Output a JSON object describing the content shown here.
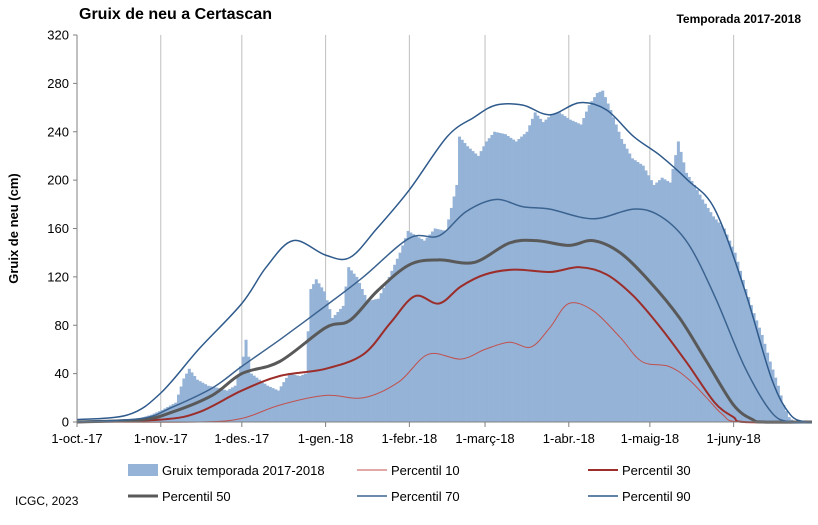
{
  "chart_data": {
    "type": "area",
    "title": "Gruix de neu a Certascan",
    "subtitle": "Temporada 2017-2018",
    "xlabel": "",
    "ylabel": "Gruix de neu (cm)",
    "ylim": [
      0,
      320
    ],
    "yticks": [
      0,
      40,
      80,
      120,
      160,
      200,
      240,
      280,
      320
    ],
    "x_range": [
      "2017-10-01",
      "2018-06-30"
    ],
    "xticks": [
      {
        "date": "2017-10-01",
        "label": "1-oct.-17"
      },
      {
        "date": "2017-11-01",
        "label": "1-nov.-17"
      },
      {
        "date": "2017-12-01",
        "label": "1-des.-17"
      },
      {
        "date": "2018-01-01",
        "label": "1-gen.-18"
      },
      {
        "date": "2018-02-01",
        "label": "1-febr.-18"
      },
      {
        "date": "2018-03-01",
        "label": "1-març-18"
      },
      {
        "date": "2018-04-01",
        "label": "1-abr.-18"
      },
      {
        "date": "2018-05-01",
        "label": "1-maig-18"
      },
      {
        "date": "2018-06-01",
        "label": "1-juny-18"
      }
    ],
    "grid": "vertical",
    "legend_position": "bottom",
    "series": [
      {
        "name": "Gruix temporada 2017-2018",
        "kind": "bar",
        "color": "#95b3d7",
        "points": [
          [
            "2017-10-01",
            0
          ],
          [
            "2017-10-20",
            0
          ],
          [
            "2017-10-25",
            4
          ],
          [
            "2017-10-28",
            6
          ],
          [
            "2017-11-01",
            10
          ],
          [
            "2017-11-06",
            16
          ],
          [
            "2017-11-09",
            36
          ],
          [
            "2017-11-11",
            44
          ],
          [
            "2017-11-14",
            35
          ],
          [
            "2017-11-18",
            30
          ],
          [
            "2017-11-22",
            28
          ],
          [
            "2017-11-25",
            26
          ],
          [
            "2017-11-28",
            30
          ],
          [
            "2017-12-01",
            54
          ],
          [
            "2017-12-02",
            68
          ],
          [
            "2017-12-04",
            40
          ],
          [
            "2017-12-10",
            30
          ],
          [
            "2017-12-14",
            26
          ],
          [
            "2017-12-18",
            40
          ],
          [
            "2017-12-22",
            38
          ],
          [
            "2017-12-24",
            40
          ],
          [
            "2017-12-26",
            110
          ],
          [
            "2017-12-28",
            118
          ],
          [
            "2017-12-31",
            108
          ],
          [
            "2018-01-03",
            86
          ],
          [
            "2018-01-07",
            96
          ],
          [
            "2018-01-09",
            128
          ],
          [
            "2018-01-12",
            120
          ],
          [
            "2018-01-16",
            100
          ],
          [
            "2018-01-20",
            102
          ],
          [
            "2018-01-24",
            120
          ],
          [
            "2018-01-28",
            140
          ],
          [
            "2018-01-31",
            158
          ],
          [
            "2018-02-03",
            154
          ],
          [
            "2018-02-06",
            150
          ],
          [
            "2018-02-10",
            160
          ],
          [
            "2018-02-14",
            158
          ],
          [
            "2018-02-18",
            196
          ],
          [
            "2018-02-19",
            236
          ],
          [
            "2018-02-22",
            228
          ],
          [
            "2018-02-26",
            220
          ],
          [
            "2018-03-01",
            232
          ],
          [
            "2018-03-04",
            240
          ],
          [
            "2018-03-08",
            238
          ],
          [
            "2018-03-12",
            232
          ],
          [
            "2018-03-16",
            240
          ],
          [
            "2018-03-19",
            256
          ],
          [
            "2018-03-22",
            248
          ],
          [
            "2018-03-25",
            254
          ],
          [
            "2018-03-28",
            256
          ],
          [
            "2018-04-01",
            250
          ],
          [
            "2018-04-05",
            246
          ],
          [
            "2018-04-08",
            262
          ],
          [
            "2018-04-11",
            272
          ],
          [
            "2018-04-13",
            274
          ],
          [
            "2018-04-16",
            258
          ],
          [
            "2018-04-20",
            234
          ],
          [
            "2018-04-24",
            218
          ],
          [
            "2018-04-28",
            212
          ],
          [
            "2018-05-02",
            196
          ],
          [
            "2018-05-05",
            202
          ],
          [
            "2018-05-08",
            198
          ],
          [
            "2018-05-11",
            232
          ],
          [
            "2018-05-14",
            206
          ],
          [
            "2018-05-17",
            196
          ],
          [
            "2018-05-20",
            184
          ],
          [
            "2018-05-24",
            170
          ],
          [
            "2018-05-28",
            160
          ],
          [
            "2018-06-01",
            140
          ],
          [
            "2018-06-05",
            110
          ],
          [
            "2018-06-08",
            90
          ],
          [
            "2018-06-11",
            72
          ],
          [
            "2018-06-14",
            50
          ],
          [
            "2018-06-17",
            30
          ],
          [
            "2018-06-19",
            14
          ],
          [
            "2018-06-21",
            4
          ],
          [
            "2018-06-23",
            0
          ],
          [
            "2018-06-30",
            0
          ]
        ]
      },
      {
        "name": "Percentil 10",
        "kind": "line",
        "color": "#c0504d",
        "width": 1,
        "points": [
          [
            "2017-10-01",
            0
          ],
          [
            "2017-11-15",
            0
          ],
          [
            "2017-12-01",
            3
          ],
          [
            "2017-12-15",
            14
          ],
          [
            "2018-01-01",
            22
          ],
          [
            "2018-01-15",
            20
          ],
          [
            "2018-01-28",
            33
          ],
          [
            "2018-02-08",
            56
          ],
          [
            "2018-02-20",
            52
          ],
          [
            "2018-03-01",
            60
          ],
          [
            "2018-03-10",
            66
          ],
          [
            "2018-03-18",
            62
          ],
          [
            "2018-03-25",
            78
          ],
          [
            "2018-04-01",
            98
          ],
          [
            "2018-04-10",
            92
          ],
          [
            "2018-04-20",
            70
          ],
          [
            "2018-04-28",
            50
          ],
          [
            "2018-05-08",
            46
          ],
          [
            "2018-05-15",
            36
          ],
          [
            "2018-05-22",
            20
          ],
          [
            "2018-05-28",
            6
          ],
          [
            "2018-06-03",
            0
          ],
          [
            "2018-06-30",
            0
          ]
        ]
      },
      {
        "name": "Percentil 30",
        "kind": "line",
        "color": "#9b2d2a",
        "width": 2,
        "points": [
          [
            "2017-10-01",
            0
          ],
          [
            "2017-11-01",
            2
          ],
          [
            "2017-11-15",
            8
          ],
          [
            "2017-12-01",
            26
          ],
          [
            "2017-12-15",
            38
          ],
          [
            "2018-01-01",
            44
          ],
          [
            "2018-01-15",
            56
          ],
          [
            "2018-01-25",
            82
          ],
          [
            "2018-02-03",
            104
          ],
          [
            "2018-02-12",
            98
          ],
          [
            "2018-02-20",
            112
          ],
          [
            "2018-03-01",
            122
          ],
          [
            "2018-03-12",
            126
          ],
          [
            "2018-03-25",
            124
          ],
          [
            "2018-04-05",
            128
          ],
          [
            "2018-04-15",
            122
          ],
          [
            "2018-04-25",
            104
          ],
          [
            "2018-05-05",
            78
          ],
          [
            "2018-05-15",
            48
          ],
          [
            "2018-05-25",
            16
          ],
          [
            "2018-06-01",
            4
          ],
          [
            "2018-06-05",
            0
          ],
          [
            "2018-06-30",
            0
          ]
        ]
      },
      {
        "name": "Percentil 50",
        "kind": "line",
        "color": "#595959",
        "width": 3,
        "points": [
          [
            "2017-10-01",
            0
          ],
          [
            "2017-10-25",
            2
          ],
          [
            "2017-11-05",
            8
          ],
          [
            "2017-11-20",
            22
          ],
          [
            "2017-12-01",
            40
          ],
          [
            "2017-12-15",
            50
          ],
          [
            "2018-01-01",
            78
          ],
          [
            "2018-01-10",
            84
          ],
          [
            "2018-01-20",
            108
          ],
          [
            "2018-02-01",
            130
          ],
          [
            "2018-02-12",
            134
          ],
          [
            "2018-02-25",
            132
          ],
          [
            "2018-03-10",
            148
          ],
          [
            "2018-03-20",
            150
          ],
          [
            "2018-04-01",
            146
          ],
          [
            "2018-04-10",
            150
          ],
          [
            "2018-04-20",
            140
          ],
          [
            "2018-05-01",
            116
          ],
          [
            "2018-05-12",
            86
          ],
          [
            "2018-05-22",
            50
          ],
          [
            "2018-06-01",
            14
          ],
          [
            "2018-06-08",
            2
          ],
          [
            "2018-06-12",
            0
          ],
          [
            "2018-06-30",
            0
          ]
        ]
      },
      {
        "name": "Percentil 70",
        "kind": "line",
        "color": "#3b6390",
        "width": 1.5,
        "points": [
          [
            "2017-10-01",
            0
          ],
          [
            "2017-10-25",
            3
          ],
          [
            "2017-11-05",
            12
          ],
          [
            "2017-11-20",
            28
          ],
          [
            "2017-12-01",
            46
          ],
          [
            "2017-12-15",
            68
          ],
          [
            "2018-01-01",
            96
          ],
          [
            "2018-01-15",
            120
          ],
          [
            "2018-02-01",
            152
          ],
          [
            "2018-02-12",
            154
          ],
          [
            "2018-02-22",
            174
          ],
          [
            "2018-03-05",
            184
          ],
          [
            "2018-03-15",
            178
          ],
          [
            "2018-03-25",
            176
          ],
          [
            "2018-04-10",
            168
          ],
          [
            "2018-04-25",
            176
          ],
          [
            "2018-05-05",
            170
          ],
          [
            "2018-05-15",
            148
          ],
          [
            "2018-05-25",
            104
          ],
          [
            "2018-06-05",
            46
          ],
          [
            "2018-06-15",
            8
          ],
          [
            "2018-06-22",
            0
          ],
          [
            "2018-06-30",
            0
          ]
        ]
      },
      {
        "name": "Percentil 90",
        "kind": "line",
        "color": "#2e5a8c",
        "width": 1.5,
        "points": [
          [
            "2017-10-01",
            2
          ],
          [
            "2017-10-20",
            6
          ],
          [
            "2017-11-01",
            24
          ],
          [
            "2017-11-15",
            60
          ],
          [
            "2017-12-01",
            98
          ],
          [
            "2017-12-10",
            128
          ],
          [
            "2017-12-20",
            150
          ],
          [
            "2018-01-01",
            138
          ],
          [
            "2018-01-10",
            136
          ],
          [
            "2018-01-20",
            160
          ],
          [
            "2018-02-01",
            192
          ],
          [
            "2018-02-15",
            236
          ],
          [
            "2018-02-25",
            252
          ],
          [
            "2018-03-05",
            262
          ],
          [
            "2018-03-15",
            262
          ],
          [
            "2018-03-25",
            254
          ],
          [
            "2018-04-05",
            264
          ],
          [
            "2018-04-15",
            258
          ],
          [
            "2018-04-25",
            236
          ],
          [
            "2018-05-05",
            220
          ],
          [
            "2018-05-15",
            200
          ],
          [
            "2018-05-25",
            176
          ],
          [
            "2018-06-05",
            110
          ],
          [
            "2018-06-15",
            36
          ],
          [
            "2018-06-22",
            6
          ],
          [
            "2018-06-28",
            0
          ],
          [
            "2018-06-30",
            0
          ]
        ]
      }
    ]
  },
  "footer": {
    "credit": "ICGC, 2023"
  }
}
